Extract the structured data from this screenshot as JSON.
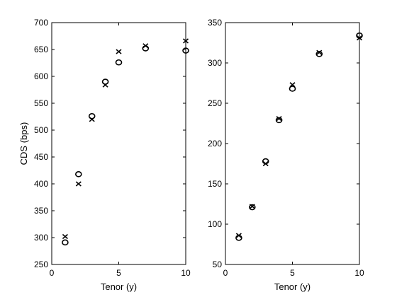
{
  "chart_data": [
    {
      "type": "scatter",
      "xlabel": "Tenor (y)",
      "ylabel": "CDS (bps)",
      "xlim": [
        0,
        10
      ],
      "ylim": [
        250,
        700
      ],
      "xticks": [
        0,
        5,
        10
      ],
      "yticks": [
        250,
        300,
        350,
        400,
        450,
        500,
        550,
        600,
        650,
        700
      ],
      "grid": false,
      "series": [
        {
          "marker": "o",
          "x": [
            1,
            2,
            3,
            4,
            5,
            7,
            10
          ],
          "y": [
            291,
            418,
            526,
            590,
            626,
            652,
            648
          ]
        },
        {
          "marker": "x",
          "x": [
            1,
            2,
            3,
            4,
            5,
            7,
            10
          ],
          "y": [
            302,
            400,
            520,
            584,
            646,
            657,
            666
          ]
        }
      ]
    },
    {
      "type": "scatter",
      "xlabel": "Tenor (y)",
      "ylabel": "",
      "xlim": [
        0,
        10
      ],
      "ylim": [
        50,
        350
      ],
      "xticks": [
        0,
        5,
        10
      ],
      "yticks": [
        50,
        100,
        150,
        200,
        250,
        300,
        350
      ],
      "grid": false,
      "series": [
        {
          "marker": "o",
          "x": [
            1,
            2,
            3,
            4,
            5,
            7,
            10
          ],
          "y": [
            83,
            121,
            178,
            229,
            268,
            311,
            334
          ]
        },
        {
          "marker": "x",
          "x": [
            1,
            2,
            3,
            4,
            5,
            7,
            10
          ],
          "y": [
            86,
            122,
            175,
            231,
            273,
            313,
            331
          ]
        }
      ]
    }
  ]
}
